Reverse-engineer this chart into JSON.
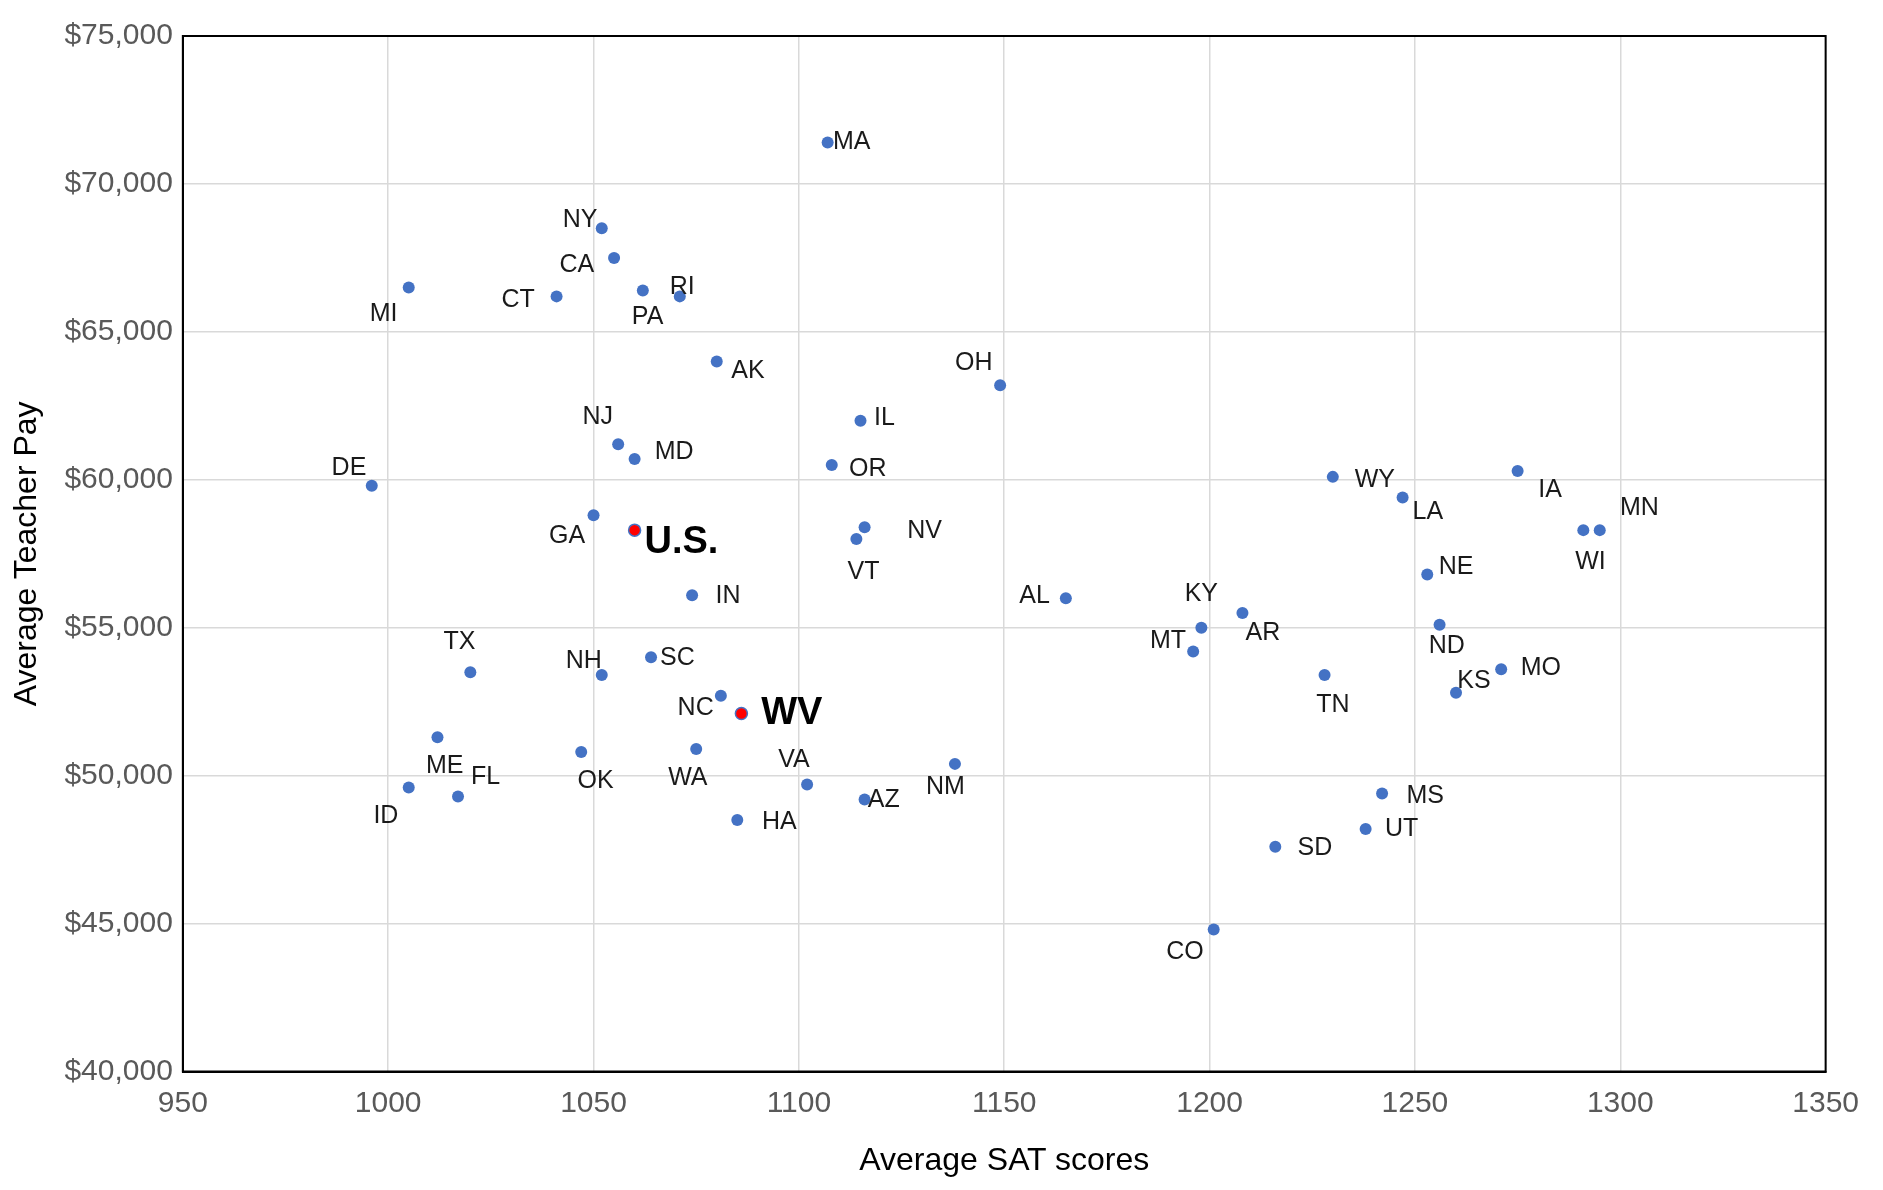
{
  "chart_data": {
    "type": "scatter",
    "xlabel": "Average SAT scores",
    "ylabel": "Average Teacher Pay",
    "xlim": [
      950,
      1350
    ],
    "xticks": [
      950,
      1000,
      1050,
      1100,
      1150,
      1200,
      1250,
      1300,
      1350
    ],
    "ylim": [
      40000,
      75000
    ],
    "yticks": [
      {
        "value": 40000,
        "label": "$40,000"
      },
      {
        "value": 45000,
        "label": "$45,000"
      },
      {
        "value": 50000,
        "label": "$50,000"
      },
      {
        "value": 55000,
        "label": "$55,000"
      },
      {
        "value": 60000,
        "label": "$60,000"
      },
      {
        "value": 65000,
        "label": "$65,000"
      },
      {
        "value": 70000,
        "label": "$70,000"
      },
      {
        "value": 75000,
        "label": "$75,000"
      }
    ],
    "grid": true,
    "legend": false,
    "marker": "circle",
    "series": [
      {
        "color": "#4472c4",
        "x": [
          1107,
          1052,
          1055,
          1005,
          1041,
          1062,
          1071,
          1080,
          1149,
          1115,
          1056,
          1060,
          1108,
          996,
          1050,
          1116,
          1114,
          1074,
          1165,
          1020,
          1052,
          1064,
          1081,
          1012,
          1047,
          1075,
          1102,
          1005,
          1017,
          1116,
          1138,
          1085,
          1201,
          1216,
          1238,
          1242,
          1198,
          1196,
          1208,
          1228,
          1230,
          1247,
          1275,
          1253,
          1256,
          1260,
          1271,
          1291,
          1295
        ],
        "values": [
          71400,
          68500,
          67500,
          66500,
          66200,
          66400,
          66200,
          64000,
          63200,
          62000,
          61200,
          60700,
          60500,
          59800,
          58800,
          58400,
          58000,
          56100,
          56000,
          53500,
          53400,
          54000,
          52700,
          51300,
          50800,
          50900,
          49700,
          49600,
          49300,
          49200,
          50400,
          48500,
          44800,
          47600,
          48200,
          49400,
          55000,
          54200,
          55500,
          53400,
          60100,
          59400,
          60300,
          56800,
          55100,
          52800,
          53600,
          58300,
          58300
        ]
      },
      {
        "color": "#ff0000",
        "x": [
          1060,
          1086
        ],
        "values": [
          58300,
          52100
        ]
      }
    ],
    "annotations": [
      {
        "text": "MA",
        "x": 1107,
        "y": 71400
      },
      {
        "text": "NY",
        "x": 1052,
        "y": 68500
      },
      {
        "text": "CA",
        "x": 1055,
        "y": 67500
      },
      {
        "text": "MI",
        "x": 1005,
        "y": 66500
      },
      {
        "text": "CT",
        "x": 1041,
        "y": 66200
      },
      {
        "text": "PA",
        "x": 1062,
        "y": 66400
      },
      {
        "text": "RI",
        "x": 1071,
        "y": 66200
      },
      {
        "text": "AK",
        "x": 1080,
        "y": 64000
      },
      {
        "text": "OH",
        "x": 1149,
        "y": 63200
      },
      {
        "text": "IL",
        "x": 1115,
        "y": 62000
      },
      {
        "text": "NJ",
        "x": 1056,
        "y": 61200
      },
      {
        "text": "MD",
        "x": 1060,
        "y": 60700
      },
      {
        "text": "OR",
        "x": 1108,
        "y": 60500
      },
      {
        "text": "DE",
        "x": 996,
        "y": 59800
      },
      {
        "text": "GA",
        "x": 1050,
        "y": 58800
      },
      {
        "text": "NV",
        "x": 1116,
        "y": 58400
      },
      {
        "text": "VT",
        "x": 1114,
        "y": 58000
      },
      {
        "text": "IN",
        "x": 1074,
        "y": 56100
      },
      {
        "text": "AL",
        "x": 1165,
        "y": 56000
      },
      {
        "text": "TX",
        "x": 1020,
        "y": 53500
      },
      {
        "text": "NH",
        "x": 1052,
        "y": 53400
      },
      {
        "text": "SC",
        "x": 1064,
        "y": 54000
      },
      {
        "text": "NC",
        "x": 1081,
        "y": 52700
      },
      {
        "text": "ME",
        "x": 1012,
        "y": 51300
      },
      {
        "text": "OK",
        "x": 1047,
        "y": 50800
      },
      {
        "text": "WA",
        "x": 1075,
        "y": 50900
      },
      {
        "text": "VA",
        "x": 1102,
        "y": 49700
      },
      {
        "text": "ID",
        "x": 1005,
        "y": 49600
      },
      {
        "text": "FL",
        "x": 1017,
        "y": 49300
      },
      {
        "text": "AZ",
        "x": 1116,
        "y": 49200
      },
      {
        "text": "NM",
        "x": 1138,
        "y": 50400
      },
      {
        "text": "HA",
        "x": 1085,
        "y": 48500
      },
      {
        "text": "CO",
        "x": 1201,
        "y": 44800
      },
      {
        "text": "SD",
        "x": 1216,
        "y": 47600
      },
      {
        "text": "UT",
        "x": 1238,
        "y": 48200
      },
      {
        "text": "MS",
        "x": 1242,
        "y": 49400
      },
      {
        "text": "KY",
        "x": 1198,
        "y": 55000
      },
      {
        "text": "MT",
        "x": 1196,
        "y": 54200
      },
      {
        "text": "AR",
        "x": 1208,
        "y": 55500
      },
      {
        "text": "TN",
        "x": 1228,
        "y": 53400
      },
      {
        "text": "WY",
        "x": 1230,
        "y": 60100
      },
      {
        "text": "LA",
        "x": 1247,
        "y": 59400
      },
      {
        "text": "IA",
        "x": 1275,
        "y": 60300
      },
      {
        "text": "NE",
        "x": 1253,
        "y": 56800
      },
      {
        "text": "ND",
        "x": 1256,
        "y": 55100
      },
      {
        "text": "KS",
        "x": 1260,
        "y": 52800
      },
      {
        "text": "MO",
        "x": 1271,
        "y": 53600
      },
      {
        "text": "WI",
        "x": 1291,
        "y": 58300
      },
      {
        "text": "MN",
        "x": 1295,
        "y": 58300
      },
      {
        "text": "U.S.",
        "x": 1060,
        "y": 58300
      },
      {
        "text": "WV",
        "x": 1086,
        "y": 52100
      }
    ]
  }
}
